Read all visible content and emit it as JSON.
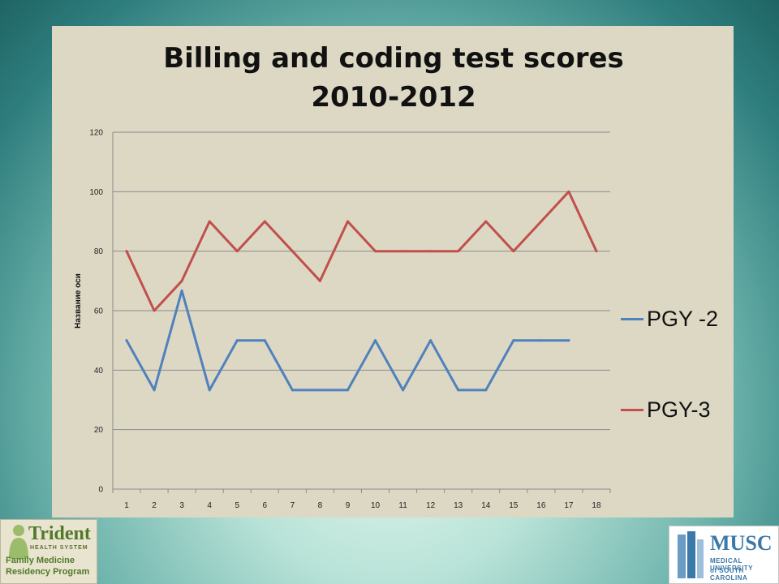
{
  "chart_data": {
    "type": "line",
    "title_line1": "Billing and coding test scores",
    "title_line2": "2010-2012",
    "ylabel": "Название оси",
    "xlabel": "",
    "ylim": [
      0,
      120
    ],
    "yticks": [
      0,
      20,
      40,
      60,
      80,
      100,
      120
    ],
    "categories": [
      "1",
      "2",
      "3",
      "4",
      "5",
      "6",
      "7",
      "8",
      "9",
      "10",
      "11",
      "12",
      "13",
      "14",
      "15",
      "16",
      "17",
      "18"
    ],
    "grid": true,
    "legend_position": "right",
    "series": [
      {
        "name": "PGY -2",
        "color": "#4f81bd",
        "values": [
          50,
          33.3,
          66.7,
          33.3,
          50,
          50,
          33.3,
          33.3,
          33.3,
          50,
          33.3,
          50,
          33.3,
          33.3,
          50,
          50,
          50,
          null
        ]
      },
      {
        "name": "PGY-3",
        "color": "#c0504d",
        "values": [
          80,
          60,
          70,
          90,
          80,
          90,
          80,
          70,
          90,
          80,
          80,
          80,
          80,
          90,
          80,
          90,
          100,
          80
        ]
      }
    ]
  },
  "logos": {
    "left": {
      "name": "Trident",
      "sub": "HEALTH SYSTEM",
      "line1": "Family Medicine",
      "line2": "Residency Program"
    },
    "right": {
      "name": "MUSC",
      "line1": "MEDICAL UNIVERSITY",
      "line2": "of SOUTH CAROLINA"
    }
  }
}
